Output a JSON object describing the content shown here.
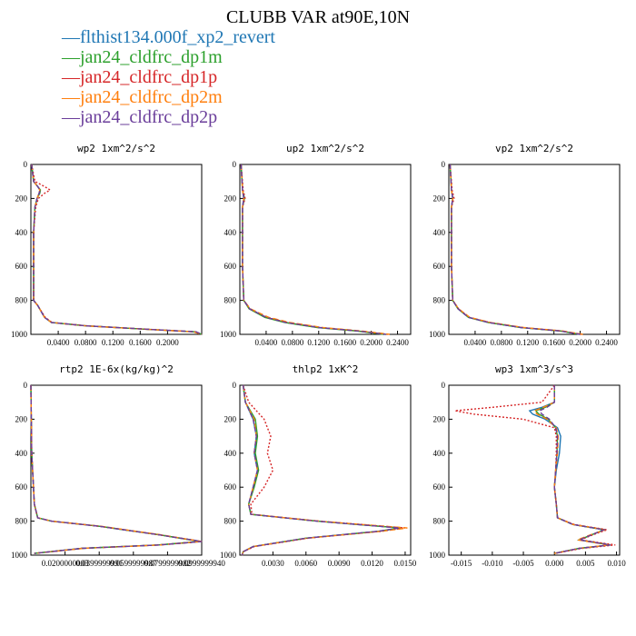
{
  "title": "CLUBB VAR at90E,10N",
  "legend": [
    {
      "name": "flthist134.000f_xp2_revert",
      "color": "#1f77b4"
    },
    {
      "name": "jan24_cldfrc_dp1m",
      "color": "#2ca02c"
    },
    {
      "name": "jan24_cldfrc_dp1p",
      "color": "#d62728"
    },
    {
      "name": "jan24_cldfrc_dp2m",
      "color": "#ff7f0e"
    },
    {
      "name": "jan24_cldfrc_dp2p",
      "color": "#6a3d9a"
    }
  ],
  "chart_data": [
    {
      "type": "line",
      "title": "wp2  1xm^2/s^2",
      "xlim": [
        0,
        0.25
      ],
      "ylim": [
        1000,
        0
      ],
      "xticks": [
        "0.0400",
        "0.0800",
        "0.1200",
        "0.1600",
        "0.2000"
      ],
      "xtick_values": [
        0.04,
        0.08,
        0.12,
        0.16,
        0.2
      ],
      "yticks": [
        0,
        200,
        400,
        600,
        800,
        1000
      ],
      "y": [
        0,
        100,
        130,
        150,
        170,
        200,
        250,
        400,
        600,
        800,
        830,
        900,
        930,
        950,
        970,
        985,
        1000
      ],
      "series": [
        {
          "name": "flthist134.000f_xp2_revert",
          "values": [
            0.001,
            0.004,
            0.01,
            0.013,
            0.012,
            0.009,
            0.006,
            0.004,
            0.004,
            0.004,
            0.01,
            0.02,
            0.03,
            0.08,
            0.17,
            0.24,
            0.25
          ]
        },
        {
          "name": "jan24_cldfrc_dp1m",
          "values": [
            0.001,
            0.004,
            0.01,
            0.014,
            0.013,
            0.009,
            0.006,
            0.004,
            0.004,
            0.004,
            0.01,
            0.02,
            0.03,
            0.08,
            0.17,
            0.24,
            0.25
          ]
        },
        {
          "name": "jan24_cldfrc_dp1p",
          "values": [
            0.001,
            0.006,
            0.02,
            0.028,
            0.02,
            0.011,
            0.007,
            0.004,
            0.004,
            0.004,
            0.01,
            0.021,
            0.031,
            0.082,
            0.172,
            0.242,
            0.25
          ]
        },
        {
          "name": "jan24_cldfrc_dp2m",
          "values": [
            0.001,
            0.004,
            0.01,
            0.013,
            0.012,
            0.009,
            0.006,
            0.004,
            0.004,
            0.004,
            0.01,
            0.02,
            0.03,
            0.079,
            0.168,
            0.238,
            0.249
          ]
        },
        {
          "name": "jan24_cldfrc_dp2p",
          "values": [
            0.001,
            0.004,
            0.01,
            0.014,
            0.012,
            0.009,
            0.006,
            0.004,
            0.004,
            0.004,
            0.01,
            0.02,
            0.03,
            0.08,
            0.171,
            0.242,
            0.25
          ]
        }
      ]
    },
    {
      "type": "line",
      "title": "up2  1xm^2/s^2",
      "xlim": [
        0,
        0.26
      ],
      "ylim": [
        1000,
        0
      ],
      "xticks": [
        "0.0400",
        "0.0800",
        "0.1200",
        "0.1600",
        "0.2000",
        "0.2400"
      ],
      "xtick_values": [
        0.04,
        0.08,
        0.12,
        0.16,
        0.2,
        0.24
      ],
      "yticks": [
        0,
        200,
        400,
        600,
        800,
        1000
      ],
      "y": [
        0,
        150,
        200,
        250,
        400,
        600,
        800,
        850,
        900,
        930,
        960,
        980,
        1000
      ],
      "series": [
        {
          "name": "flthist134.000f_xp2_revert",
          "values": [
            0.002,
            0.004,
            0.006,
            0.004,
            0.004,
            0.004,
            0.006,
            0.015,
            0.04,
            0.07,
            0.12,
            0.18,
            0.22
          ]
        },
        {
          "name": "jan24_cldfrc_dp1m",
          "values": [
            0.002,
            0.004,
            0.007,
            0.004,
            0.004,
            0.004,
            0.006,
            0.014,
            0.038,
            0.068,
            0.118,
            0.178,
            0.22
          ]
        },
        {
          "name": "jan24_cldfrc_dp1p",
          "values": [
            0.002,
            0.005,
            0.008,
            0.004,
            0.004,
            0.004,
            0.006,
            0.015,
            0.041,
            0.072,
            0.122,
            0.182,
            0.225
          ]
        },
        {
          "name": "jan24_cldfrc_dp2m",
          "values": [
            0.002,
            0.004,
            0.006,
            0.004,
            0.004,
            0.004,
            0.006,
            0.016,
            0.044,
            0.076,
            0.126,
            0.186,
            0.228
          ]
        },
        {
          "name": "jan24_cldfrc_dp2p",
          "values": [
            0.002,
            0.004,
            0.006,
            0.004,
            0.004,
            0.004,
            0.006,
            0.015,
            0.04,
            0.07,
            0.12,
            0.18,
            0.222
          ]
        }
      ]
    },
    {
      "type": "line",
      "title": "vp2  1xm^2/s^2",
      "xlim": [
        0,
        0.26
      ],
      "ylim": [
        1000,
        0
      ],
      "xticks": [
        "0.0400",
        "0.0800",
        "0.1200",
        "0.1600",
        "0.2000",
        "0.2400"
      ],
      "xtick_values": [
        0.04,
        0.08,
        0.12,
        0.16,
        0.2,
        0.24
      ],
      "yticks": [
        0,
        200,
        400,
        600,
        800,
        1000
      ],
      "y": [
        0,
        150,
        200,
        250,
        400,
        600,
        800,
        850,
        900,
        930,
        960,
        980,
        1000
      ],
      "series": [
        {
          "name": "flthist134.000f_xp2_revert",
          "values": [
            0.002,
            0.004,
            0.006,
            0.004,
            0.004,
            0.004,
            0.006,
            0.014,
            0.03,
            0.06,
            0.11,
            0.17,
            0.2
          ]
        },
        {
          "name": "jan24_cldfrc_dp1m",
          "values": [
            0.002,
            0.004,
            0.006,
            0.004,
            0.004,
            0.004,
            0.006,
            0.014,
            0.03,
            0.06,
            0.11,
            0.17,
            0.2
          ]
        },
        {
          "name": "jan24_cldfrc_dp1p",
          "values": [
            0.002,
            0.005,
            0.008,
            0.004,
            0.004,
            0.004,
            0.006,
            0.015,
            0.031,
            0.062,
            0.112,
            0.172,
            0.202
          ]
        },
        {
          "name": "jan24_cldfrc_dp2m",
          "values": [
            0.002,
            0.004,
            0.006,
            0.004,
            0.004,
            0.004,
            0.006,
            0.015,
            0.032,
            0.063,
            0.114,
            0.174,
            0.204
          ]
        },
        {
          "name": "jan24_cldfrc_dp2p",
          "values": [
            0.002,
            0.004,
            0.006,
            0.004,
            0.004,
            0.004,
            0.006,
            0.014,
            0.03,
            0.06,
            0.11,
            0.17,
            0.2
          ]
        }
      ]
    },
    {
      "type": "line",
      "title": "rtp2  1E-6x(kg/kg)^2",
      "xlim": [
        0,
        0.1
      ],
      "ylim": [
        1000,
        0
      ],
      "xticks": [
        "0.0200000003",
        "0.0399999991",
        "0.0599999987",
        "0.0799999982",
        "0.0999999940"
      ],
      "xtick_values": [
        0.02,
        0.04,
        0.06,
        0.08,
        0.1
      ],
      "yticks": [
        0,
        200,
        400,
        600,
        800,
        1000
      ],
      "y": [
        0,
        400,
        700,
        780,
        800,
        830,
        880,
        920,
        940,
        960,
        990
      ],
      "series": [
        {
          "name": "flthist134.000f_xp2_revert",
          "values": [
            0,
            0.0005,
            0.002,
            0.004,
            0.012,
            0.04,
            0.075,
            0.1,
            0.075,
            0.03,
            0.002
          ]
        },
        {
          "name": "jan24_cldfrc_dp1m",
          "values": [
            0,
            0.0005,
            0.002,
            0.004,
            0.012,
            0.04,
            0.075,
            0.099,
            0.074,
            0.03,
            0.002
          ]
        },
        {
          "name": "jan24_cldfrc_dp1p",
          "values": [
            0,
            0.0005,
            0.002,
            0.004,
            0.012,
            0.04,
            0.075,
            0.1,
            0.075,
            0.03,
            0.002
          ]
        },
        {
          "name": "jan24_cldfrc_dp2m",
          "values": [
            0,
            0.0005,
            0.002,
            0.004,
            0.012,
            0.041,
            0.076,
            0.1,
            0.076,
            0.031,
            0.002
          ]
        },
        {
          "name": "jan24_cldfrc_dp2p",
          "values": [
            0,
            0.0005,
            0.002,
            0.004,
            0.012,
            0.04,
            0.075,
            0.1,
            0.075,
            0.03,
            0.002
          ]
        }
      ]
    },
    {
      "type": "line",
      "title": "thlp2  1xK^2",
      "xlim": [
        0,
        0.0155
      ],
      "ylim": [
        1000,
        0
      ],
      "xticks": [
        "0.0030",
        "0.0060",
        "0.0090",
        "0.0120",
        "0.0150"
      ],
      "xtick_values": [
        0.003,
        0.006,
        0.009,
        0.012,
        0.015
      ],
      "yticks": [
        0,
        200,
        400,
        600,
        800,
        1000
      ],
      "y": [
        0,
        100,
        200,
        300,
        400,
        500,
        600,
        700,
        760,
        800,
        840,
        860,
        900,
        950,
        980,
        1000
      ],
      "series": [
        {
          "name": "flthist134.000f_xp2_revert",
          "values": [
            0.0003,
            0.0005,
            0.0012,
            0.0015,
            0.0013,
            0.0016,
            0.0012,
            0.0008,
            0.001,
            0.007,
            0.0145,
            0.0125,
            0.006,
            0.0012,
            0.0003,
            0.0002
          ]
        },
        {
          "name": "jan24_cldfrc_dp1m",
          "values": [
            0.0003,
            0.0005,
            0.0014,
            0.0016,
            0.0014,
            0.0017,
            0.0013,
            0.0008,
            0.001,
            0.007,
            0.0146,
            0.0126,
            0.006,
            0.0012,
            0.0003,
            0.0002
          ]
        },
        {
          "name": "jan24_cldfrc_dp1p",
          "values": [
            0.0003,
            0.0008,
            0.0022,
            0.0028,
            0.0025,
            0.003,
            0.0022,
            0.001,
            0.0011,
            0.0072,
            0.015,
            0.0128,
            0.0062,
            0.0013,
            0.0003,
            0.0002
          ]
        },
        {
          "name": "jan24_cldfrc_dp2m",
          "values": [
            0.0003,
            0.0005,
            0.0013,
            0.0015,
            0.0013,
            0.0016,
            0.0012,
            0.0008,
            0.001,
            0.0072,
            0.0152,
            0.0128,
            0.0061,
            0.0012,
            0.0003,
            0.0002
          ]
        },
        {
          "name": "jan24_cldfrc_dp2p",
          "values": [
            0.0003,
            0.0005,
            0.0012,
            0.0015,
            0.0013,
            0.0016,
            0.0012,
            0.0008,
            0.001,
            0.007,
            0.0145,
            0.0125,
            0.006,
            0.0012,
            0.0003,
            0.0002
          ]
        }
      ]
    },
    {
      "type": "line",
      "title": "wp3  1xm^3/s^3",
      "xlim": [
        -0.017,
        0.0105
      ],
      "ylim": [
        1000,
        0
      ],
      "xticks": [
        "-0.015",
        "-0.010",
        "-0.005",
        "0.000",
        "0.005",
        "0.010"
      ],
      "xtick_values": [
        -0.015,
        -0.01,
        -0.005,
        0,
        0.005,
        0.01
      ],
      "yticks": [
        0,
        200,
        400,
        600,
        800,
        1000
      ],
      "y": [
        0,
        100,
        130,
        150,
        170,
        200,
        250,
        300,
        400,
        500,
        600,
        700,
        780,
        820,
        850,
        880,
        910,
        940,
        960,
        990
      ],
      "series": [
        {
          "name": "flthist134.000f_xp2_revert",
          "values": [
            0,
            0,
            -0.002,
            -0.004,
            -0.0035,
            -0.0015,
            0.0005,
            0.001,
            0.0008,
            0.0003,
            0,
            0.0003,
            0.0005,
            0.003,
            0.008,
            0.006,
            0.004,
            0.009,
            0.004,
            0
          ]
        },
        {
          "name": "jan24_cldfrc_dp1m",
          "values": [
            0,
            0,
            -0.0015,
            -0.003,
            -0.0025,
            -0.001,
            0.0002,
            0.0005,
            0.0004,
            0.0002,
            0,
            0.0003,
            0.0005,
            0.003,
            0.008,
            0.006,
            0.004,
            0.009,
            0.004,
            0
          ]
        },
        {
          "name": "jan24_cldfrc_dp1p",
          "values": [
            0,
            -0.002,
            -0.01,
            -0.016,
            -0.013,
            -0.005,
            0,
            0.0003,
            0.0003,
            0.0002,
            0,
            0.0003,
            0.0005,
            0.0032,
            0.0085,
            0.0062,
            0.0042,
            0.0098,
            0.0045,
            0
          ]
        },
        {
          "name": "jan24_cldfrc_dp2m",
          "values": [
            0,
            0,
            -0.0018,
            -0.0032,
            -0.0028,
            -0.0012,
            0.0003,
            0.0006,
            0.0005,
            0.0002,
            0,
            0.0003,
            0.0005,
            0.003,
            0.0082,
            0.0058,
            0.0037,
            0.0088,
            0.004,
            0
          ]
        },
        {
          "name": "jan24_cldfrc_dp2p",
          "values": [
            0,
            0,
            -0.0012,
            -0.0024,
            -0.002,
            -0.0008,
            0.0002,
            0.0005,
            0.0004,
            0.0002,
            0,
            0.0003,
            0.0005,
            0.003,
            0.008,
            0.006,
            0.004,
            0.009,
            0.004,
            0
          ]
        }
      ]
    }
  ]
}
